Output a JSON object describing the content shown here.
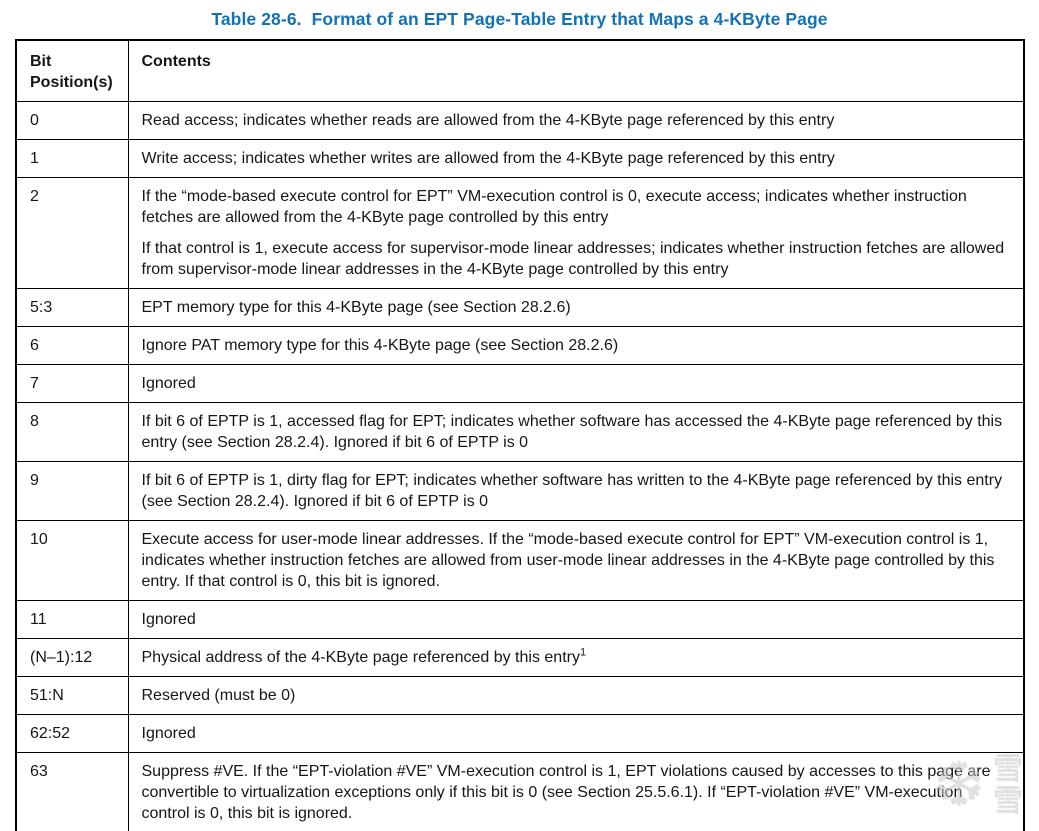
{
  "page": {
    "title_prefix": "Table 28-6.",
    "title_text": "Format of an EPT Page-Table Entry that Maps a 4-KByte Page",
    "title_color": "#1272b6",
    "text_color": "#161616",
    "border_color": "#000000"
  },
  "table": {
    "headers": [
      "Bit Position(s)",
      "Contents"
    ],
    "rows": [
      {
        "bit": "0",
        "paragraphs": [
          "Read access; indicates whether reads are allowed from the 4-KByte page referenced by this entry"
        ]
      },
      {
        "bit": "1",
        "paragraphs": [
          "Write access; indicates whether writes are allowed from the 4-KByte page referenced by this entry"
        ]
      },
      {
        "bit": "2",
        "paragraphs": [
          "If the “mode-based execute control for EPT” VM-execution control is 0, execute access; indicates whether instruction fetches are allowed from the 4-KByte page controlled by this entry",
          "If that control is 1, execute access for supervisor-mode linear addresses; indicates whether instruction fetches are allowed from supervisor-mode linear addresses in the 4-KByte page controlled by this entry"
        ]
      },
      {
        "bit": "5:3",
        "paragraphs": [
          "EPT memory type for this 4-KByte page (see Section 28.2.6)"
        ]
      },
      {
        "bit": "6",
        "paragraphs": [
          "Ignore PAT memory type for this 4-KByte page (see Section 28.2.6)"
        ]
      },
      {
        "bit": "7",
        "paragraphs": [
          "Ignored"
        ]
      },
      {
        "bit": "8",
        "paragraphs": [
          "If bit 6 of EPTP is 1, accessed flag for EPT; indicates whether software has accessed the 4-KByte page referenced by this entry (see Section 28.2.4). Ignored if bit 6 of EPTP is 0"
        ]
      },
      {
        "bit": "9",
        "paragraphs": [
          "If bit 6 of EPTP is 1, dirty flag for EPT; indicates whether software has written to the 4-KByte page referenced by this entry (see Section 28.2.4). Ignored if bit 6 of EPTP is 0"
        ]
      },
      {
        "bit": "10",
        "paragraphs": [
          "Execute access for user-mode linear addresses. If the “mode-based execute control for EPT” VM-execution control is 1, indicates whether instruction fetches are allowed from user-mode linear addresses in the 4-KByte page controlled by this entry. If that control is 0, this bit is ignored."
        ]
      },
      {
        "bit": "11",
        "paragraphs": [
          "Ignored"
        ]
      },
      {
        "bit": "(N–1):12",
        "paragraphs": [
          "Physical address of the 4-KByte page referenced by this entry"
        ],
        "sup": "1"
      },
      {
        "bit": "51:N",
        "paragraphs": [
          "Reserved (must be 0)"
        ]
      },
      {
        "bit": "62:52",
        "paragraphs": [
          "Ignored"
        ]
      },
      {
        "bit": "63",
        "paragraphs": [
          "Suppress #VE. If the “EPT-violation #VE” VM-execution control is 1, EPT violations caused by accesses to this page are convertible to virtualization exceptions only if this bit is 0 (see Section 25.5.6.1). If “EPT-violation #VE” VM-execution control is 0, this bit is ignored."
        ]
      }
    ]
  },
  "watermark": {
    "snowflake": "❆",
    "characters": [
      "雪",
      "雪"
    ]
  }
}
